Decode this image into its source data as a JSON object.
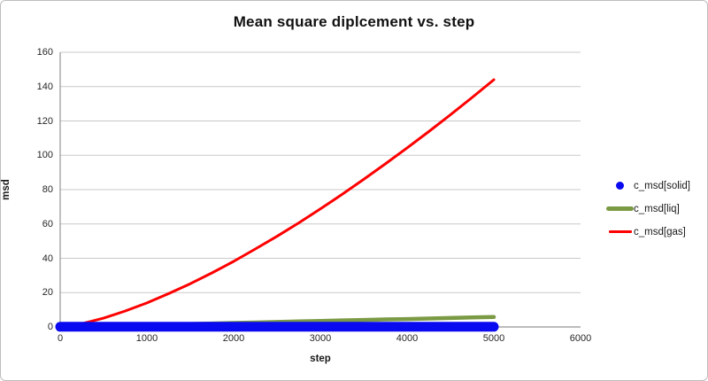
{
  "chart_data": {
    "type": "line",
    "title": "Mean square diplcement vs. step",
    "xlabel": "step",
    "ylabel": "msd",
    "xlim": [
      0,
      6000
    ],
    "ylim": [
      0,
      160
    ],
    "x_ticks": [
      0,
      1000,
      2000,
      3000,
      4000,
      5000,
      6000
    ],
    "y_ticks": [
      0,
      20,
      40,
      60,
      80,
      100,
      120,
      140,
      160
    ],
    "grid": true,
    "legend_position": "right",
    "x": [
      0,
      250,
      500,
      750,
      1000,
      1250,
      1500,
      1750,
      2000,
      2250,
      2500,
      2750,
      3000,
      3250,
      3500,
      3750,
      4000,
      4250,
      4500,
      4750,
      5000
    ],
    "series": [
      {
        "name": "c_msd[solid]",
        "color": "#0a0af0",
        "stroke_width": 11,
        "legend_swatch": "dot",
        "values": [
          0.1,
          0.1,
          0.1,
          0.1,
          0.1,
          0.1,
          0.1,
          0.1,
          0.1,
          0.1,
          0.1,
          0.1,
          0.1,
          0.1,
          0.1,
          0.1,
          0.1,
          0.1,
          0.1,
          0.1,
          0.1
        ]
      },
      {
        "name": "c_msd[liq]",
        "color": "#7b9a44",
        "stroke_width": 4.5,
        "legend_swatch": "thick-line",
        "values": [
          0,
          0.3,
          0.6,
          0.9,
          1.2,
          1.5,
          1.7,
          2.0,
          2.3,
          2.6,
          2.9,
          3.2,
          3.5,
          3.8,
          4.1,
          4.4,
          4.6,
          4.9,
          5.2,
          5.5,
          5.8
        ]
      },
      {
        "name": "c_msd[gas]",
        "color": "#fe0000",
        "stroke_width": 3,
        "legend_swatch": "thin-line",
        "values": [
          0,
          1.9,
          5.1,
          9.3,
          14.0,
          19.4,
          25.2,
          31.5,
          38.2,
          45.4,
          52.8,
          60.6,
          68.8,
          77.2,
          86.0,
          95.0,
          104.3,
          113.8,
          123.6,
          133.7,
          144.0
        ]
      }
    ],
    "colors": {
      "gridline": "#c9c9c9",
      "axis_line": "#959595",
      "tick_text": "#262626",
      "frame_border": "#bdbdbd"
    }
  }
}
